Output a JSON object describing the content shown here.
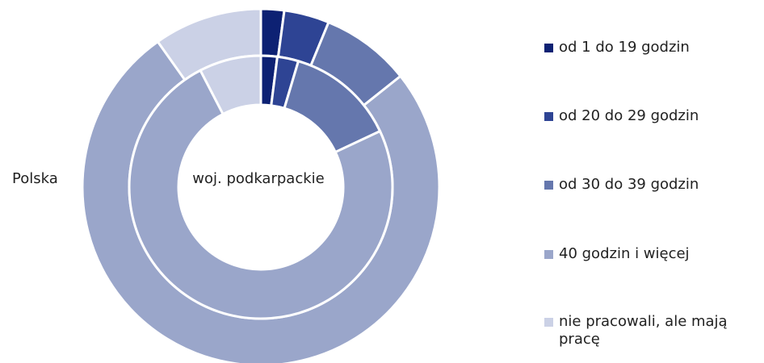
{
  "chart_data": {
    "type": "donut",
    "categories": [
      "od 1 do 19 godzin",
      "od 20 do 29 godzin",
      "od 30 do 39 godzin",
      "40 godzin i więcej",
      "nie pracowali, ale mają pracę"
    ],
    "colors": [
      "#0d2173",
      "#2e4494",
      "#6577ad",
      "#9aa6ca",
      "#cbd1e6"
    ],
    "series": [
      {
        "name": "Polska",
        "values": [
          2.1,
          4.1,
          8.1,
          75.9,
          9.8
        ]
      },
      {
        "name": "woj. podkarpackie",
        "values": [
          2.0,
          2.6,
          13.4,
          74.4,
          7.6
        ]
      }
    ]
  }
}
